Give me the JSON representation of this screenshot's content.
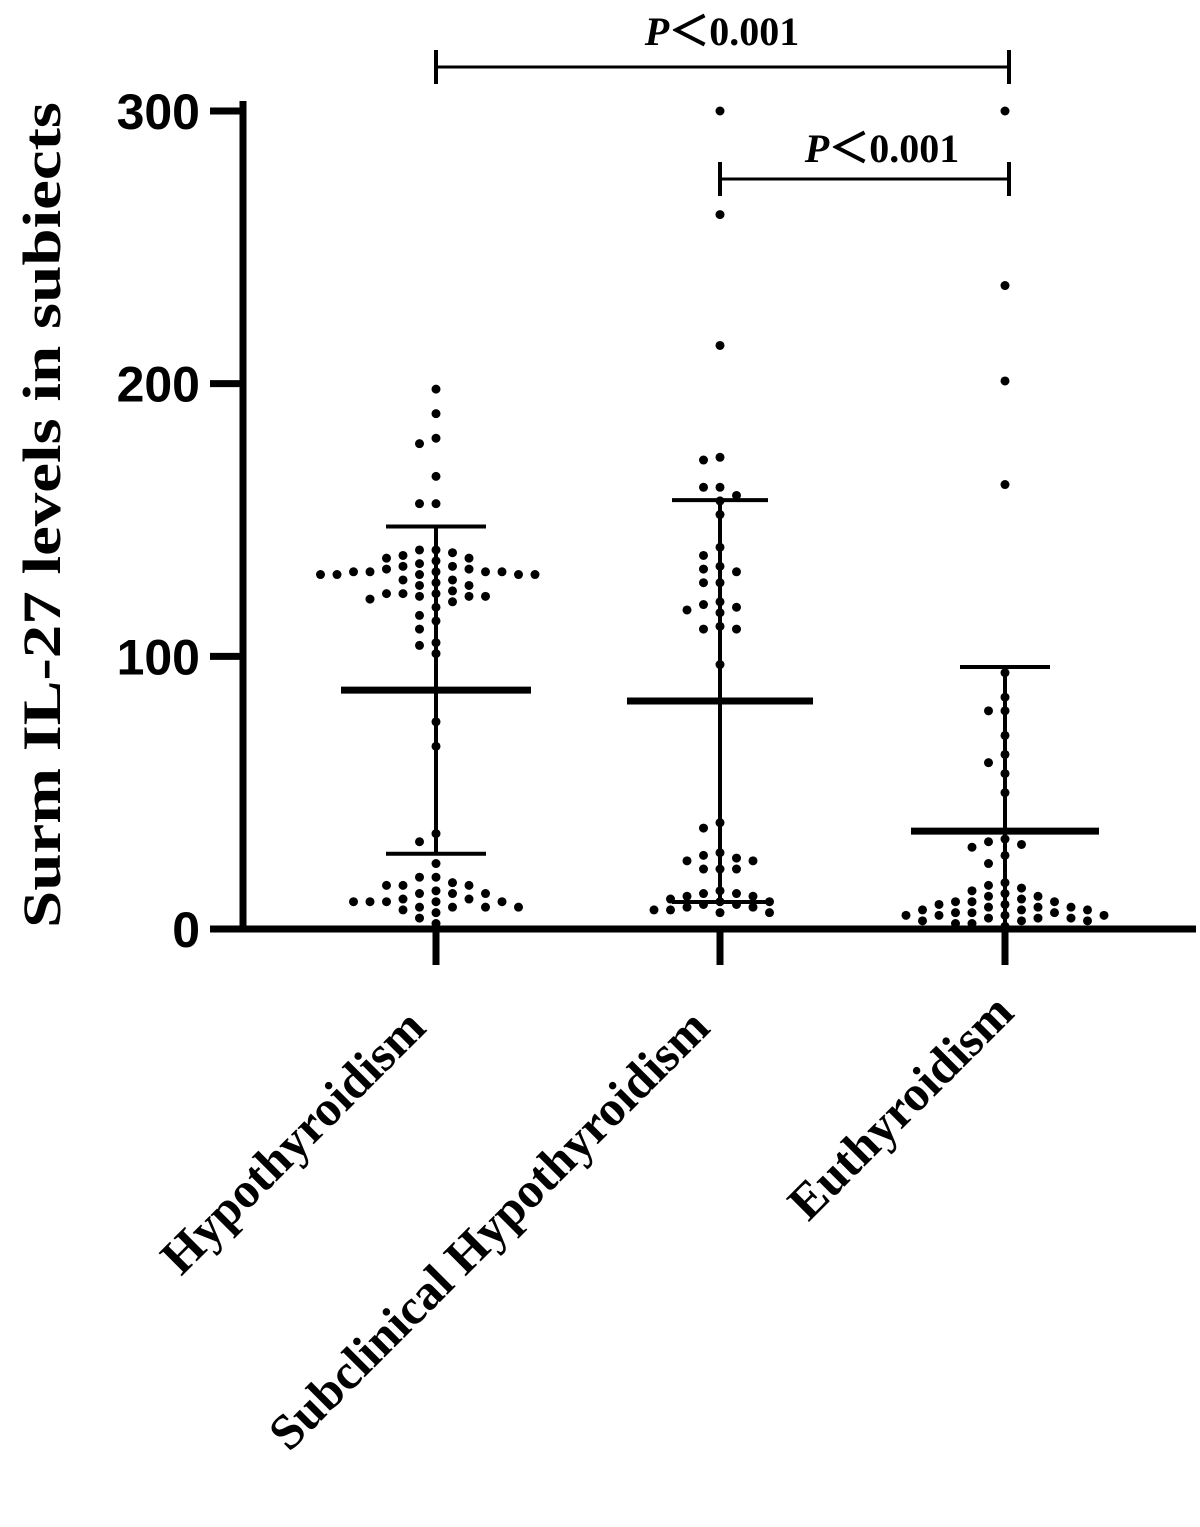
{
  "chart_data": {
    "type": "scatter",
    "subtype": "dot plot with mean and SD error bars",
    "title": "",
    "xlabel": "",
    "ylabel": "Surm IL-27 levels in subiects",
    "ylim": [
      0,
      300
    ],
    "yticks": [
      "0",
      "100",
      "200",
      "300"
    ],
    "grid": false,
    "categories": [
      "Hypothyroidism",
      "Subclinical Hypothyroidism",
      "Euthyroidism"
    ],
    "series": [
      {
        "category": "Hypothyroidism",
        "mean": 87.6,
        "sd": 60,
        "values": [
          198,
          189,
          180,
          178,
          166,
          156,
          156,
          139,
          137,
          134,
          131,
          128,
          126,
          123,
          121,
          118,
          115,
          110,
          104,
          101,
          136,
          132,
          130,
          123,
          120,
          113,
          105,
          139,
          136,
          132,
          130,
          122,
          138,
          135,
          133,
          128,
          122,
          130,
          126,
          123,
          130,
          127,
          122,
          133,
          130,
          124,
          131,
          131,
          131,
          131,
          76,
          67,
          35,
          32,
          24,
          16,
          13,
          7,
          16,
          13,
          10,
          6,
          2,
          17,
          11,
          8,
          4,
          19,
          16,
          8,
          19,
          14,
          8,
          11,
          13,
          8,
          10,
          10,
          10,
          10
        ]
      },
      {
        "category": "Subclinical Hypothyroidism",
        "mean": 83.6,
        "sd": 73.7,
        "values": [
          300,
          262,
          214,
          173,
          172,
          162,
          162,
          159,
          157,
          152,
          140,
          137,
          132,
          131,
          127,
          133,
          127,
          120,
          117,
          111,
          116,
          118,
          119,
          110,
          110,
          97,
          39,
          37,
          25,
          25,
          27,
          22,
          22,
          28,
          22,
          26,
          14,
          13,
          12,
          11,
          10,
          10,
          9,
          9,
          8,
          8,
          7,
          7,
          6,
          6,
          13,
          12
        ]
      },
      {
        "category": "Euthyroidism",
        "mean": 35.9,
        "sd": 60.2,
        "values": [
          300,
          236,
          201,
          163,
          94,
          85,
          80,
          80,
          71,
          64,
          61,
          57,
          50,
          32,
          31,
          33,
          30,
          27,
          24,
          17,
          16,
          15,
          14,
          13,
          12,
          12,
          11,
          10,
          10,
          10,
          9,
          9,
          8,
          8,
          8,
          7,
          7,
          7,
          6,
          6,
          6,
          5,
          5,
          5,
          5,
          4,
          4,
          4,
          3,
          3,
          3,
          2,
          2,
          1
        ]
      }
    ],
    "annotations": [
      {
        "from": "Hypothyroidism",
        "to": "Euthyroidism",
        "p_symbol": "P",
        "p_text": "＜0.001"
      },
      {
        "from": "Subclinical Hypothyroidism",
        "to": "Euthyroidism",
        "p_symbol": "P",
        "p_text": "＜0.001"
      }
    ],
    "colors": {
      "points": "#000000",
      "lines": "#000000"
    }
  }
}
